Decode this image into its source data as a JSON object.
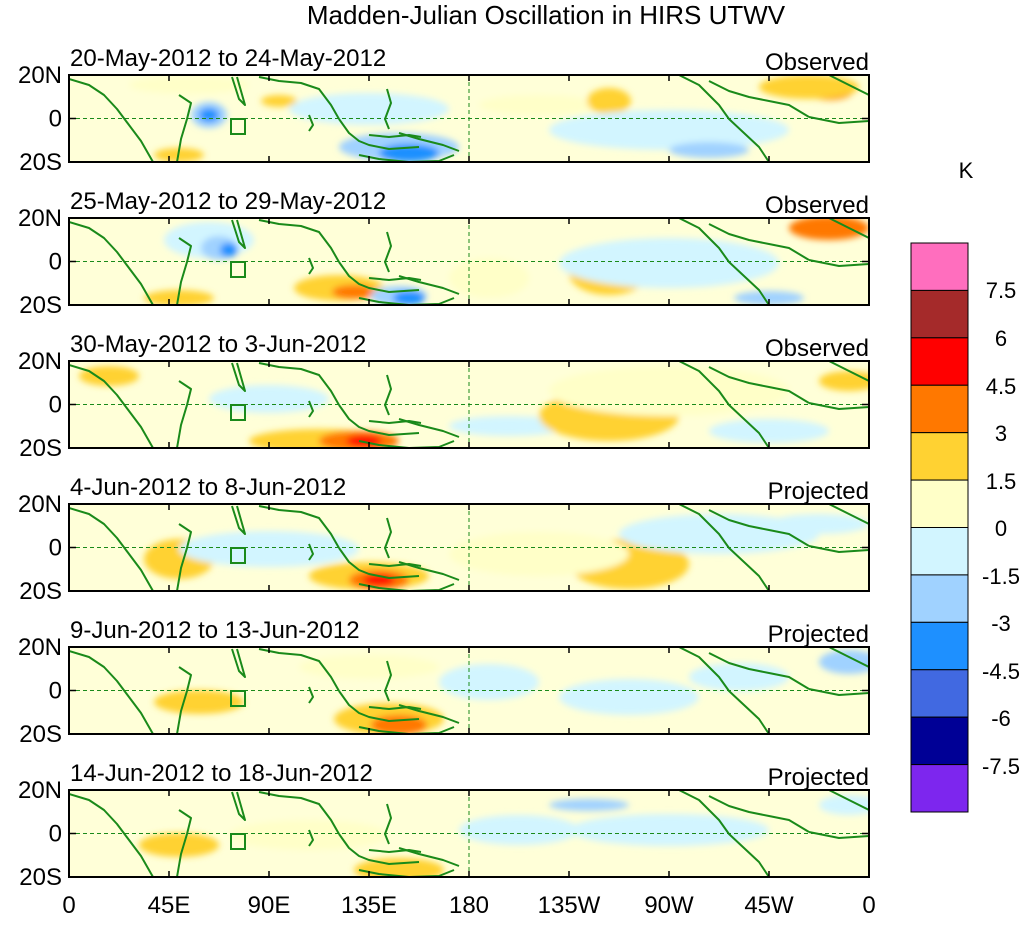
{
  "title": "Madden-Julian Oscillation in HIRS UTWV",
  "lat_labels": [
    "20N",
    "0",
    "20S"
  ],
  "lon_labels": [
    "0",
    "45E",
    "90E",
    "135E",
    "180",
    "135W",
    "90W",
    "45W",
    "0"
  ],
  "colorbar": {
    "unit": "K",
    "colors": [
      "#ff6ebe",
      "#a52a2a",
      "#ff0000",
      "#ff7800",
      "#ffd232",
      "#ffffc8",
      "#d2f5ff",
      "#a0d2ff",
      "#1e90ff",
      "#4169e1",
      "#000096",
      "#7d26ee"
    ],
    "tick_labels": [
      "7.5",
      "6",
      "4.5",
      "3",
      "1.5",
      "0",
      "-1.5",
      "-3",
      "-4.5",
      "-6",
      "-7.5"
    ]
  },
  "panels": [
    {
      "dates": "20-May-2012 to 24-May-2012",
      "status": "Observed"
    },
    {
      "dates": "25-May-2012 to 29-May-2012",
      "status": "Observed"
    },
    {
      "dates": "30-May-2012 to 3-Jun-2012",
      "status": "Observed"
    },
    {
      "dates": "4-Jun-2012 to 8-Jun-2012",
      "status": "Projected"
    },
    {
      "dates": "9-Jun-2012 to 13-Jun-2012",
      "status": "Projected"
    },
    {
      "dates": "14-Jun-2012 to 18-Jun-2012",
      "status": "Projected"
    }
  ],
  "colors": {
    "coastline": "#1a8a1a",
    "reference_lines": "#1a8a1a",
    "frame": "#000000"
  }
}
